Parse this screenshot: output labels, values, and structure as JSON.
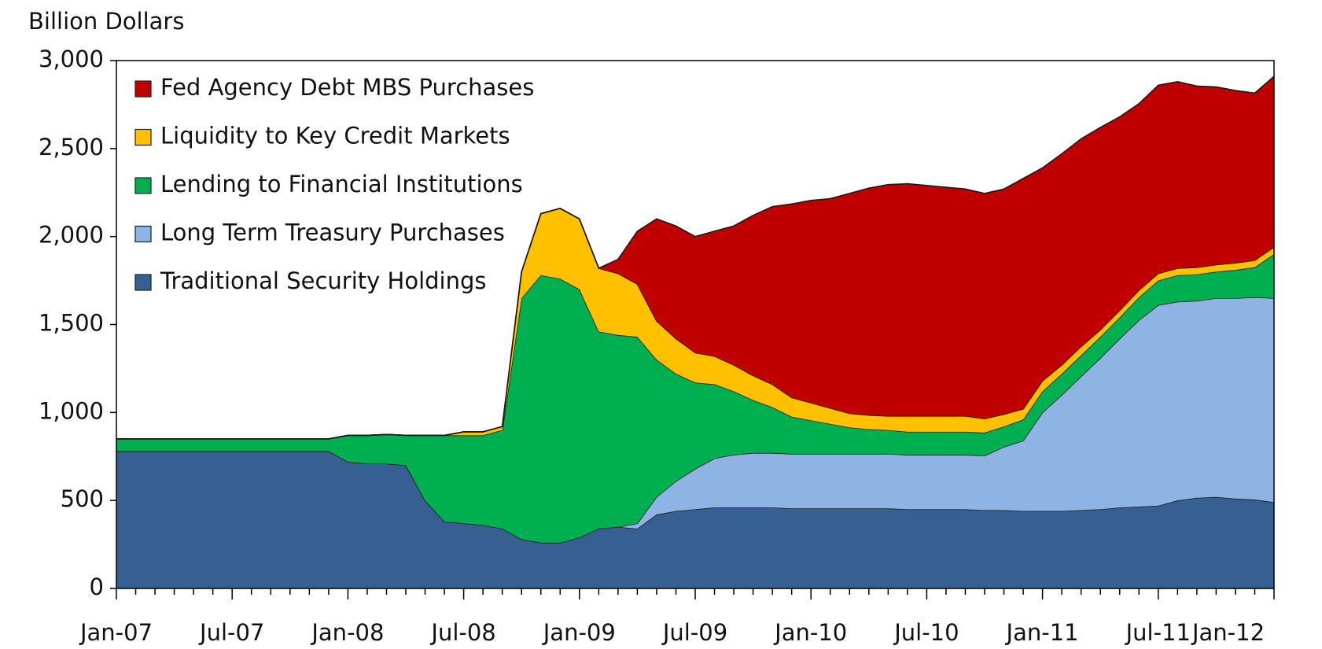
{
  "chart_data": {
    "type": "stacked-area",
    "y_label": "Billion Dollars",
    "categories": [
      "Jan-07",
      null,
      null,
      null,
      null,
      null,
      "Jul-07",
      null,
      null,
      null,
      null,
      null,
      "Jan-08",
      null,
      null,
      null,
      null,
      null,
      "Jul-08",
      null,
      null,
      null,
      null,
      null,
      "Jan-09",
      null,
      null,
      null,
      null,
      null,
      "Jul-09",
      null,
      null,
      null,
      null,
      null,
      "Jan-10",
      null,
      null,
      null,
      null,
      null,
      "Jul-10",
      null,
      null,
      null,
      null,
      null,
      "Jan-11",
      null,
      null,
      null,
      null,
      null,
      "Jul-11",
      null,
      null,
      null,
      null,
      null,
      "Jan-12"
    ],
    "series": [
      {
        "name": "Fed Agency Debt MBS Purchases",
        "color": "#c00000",
        "values": [
          0,
          0,
          0,
          0,
          0,
          0,
          0,
          0,
          0,
          0,
          0,
          0,
          0,
          0,
          0,
          0,
          0,
          0,
          0,
          0,
          0,
          0,
          0,
          0,
          0,
          0,
          80,
          300,
          580,
          640,
          660,
          710,
          790,
          910,
          1010,
          1100,
          1150,
          1190,
          1250,
          1290,
          1315,
          1320,
          1310,
          1300,
          1290,
          1280,
          1280,
          1310,
          1210,
          1200,
          1180,
          1150,
          1100,
          1060,
          1070,
          1060,
          1030,
          1010,
          980,
          950,
          970
        ]
      },
      {
        "name": "Liquidity to Key Credit Markets",
        "color": "#ffc000",
        "values": [
          0,
          0,
          0,
          0,
          0,
          0,
          0,
          0,
          0,
          0,
          0,
          0,
          0,
          0,
          0,
          0,
          0,
          0,
          20,
          20,
          20,
          150,
          350,
          400,
          400,
          360,
          350,
          300,
          220,
          200,
          170,
          160,
          150,
          140,
          130,
          110,
          100,
          90,
          80,
          80,
          80,
          90,
          90,
          90,
          90,
          80,
          70,
          60,
          60,
          50,
          50,
          40,
          40,
          40,
          40,
          40,
          40,
          40,
          40,
          40,
          40
        ]
      },
      {
        "name": "Lending to Financial Institutions",
        "color": "#00b050",
        "values": [
          70,
          70,
          70,
          70,
          70,
          70,
          70,
          70,
          70,
          70,
          70,
          70,
          150,
          160,
          165,
          170,
          370,
          490,
          500,
          510,
          560,
          1370,
          1520,
          1500,
          1410,
          1120,
          1090,
          1060,
          780,
          610,
          490,
          420,
          360,
          300,
          260,
          210,
          190,
          170,
          150,
          140,
          135,
          130,
          130,
          130,
          130,
          130,
          115,
          120,
          120,
          120,
          120,
          120,
          120,
          130,
          140,
          150,
          150,
          150,
          160,
          170,
          250
        ]
      },
      {
        "name": "Long Term Treasury Purchases",
        "color": "#8eb4e3",
        "values": [
          0,
          0,
          0,
          0,
          0,
          0,
          0,
          0,
          0,
          0,
          0,
          0,
          0,
          0,
          0,
          0,
          0,
          0,
          0,
          0,
          0,
          0,
          0,
          0,
          0,
          0,
          0,
          30,
          100,
          170,
          230,
          280,
          300,
          310,
          310,
          310,
          310,
          310,
          310,
          310,
          310,
          310,
          310,
          310,
          310,
          310,
          360,
          400,
          560,
          660,
          760,
          860,
          960,
          1060,
          1140,
          1130,
          1120,
          1130,
          1140,
          1150,
          1160
        ]
      },
      {
        "name": "Traditional Security Holdings",
        "color": "#376092",
        "values": [
          780,
          780,
          780,
          780,
          780,
          780,
          780,
          780,
          780,
          780,
          780,
          780,
          720,
          710,
          710,
          700,
          500,
          380,
          370,
          360,
          340,
          280,
          260,
          260,
          290,
          340,
          350,
          340,
          420,
          440,
          450,
          460,
          460,
          460,
          460,
          455,
          455,
          455,
          455,
          455,
          455,
          450,
          450,
          450,
          450,
          445,
          445,
          440,
          440,
          440,
          445,
          450,
          460,
          465,
          470,
          500,
          515,
          520,
          510,
          505,
          490
        ]
      }
    ],
    "ylim": [
      0,
      3000
    ],
    "yticks": [
      0,
      500,
      {
        "value": 1000,
        "label": "1,000"
      },
      {
        "value": 1500,
        "label": "1,500"
      },
      {
        "value": 2000,
        "label": "2,000"
      },
      {
        "value": 2500,
        "label": "2,500"
      },
      {
        "value": 3000,
        "label": "3,000"
      }
    ],
    "legend": "top-left"
  }
}
